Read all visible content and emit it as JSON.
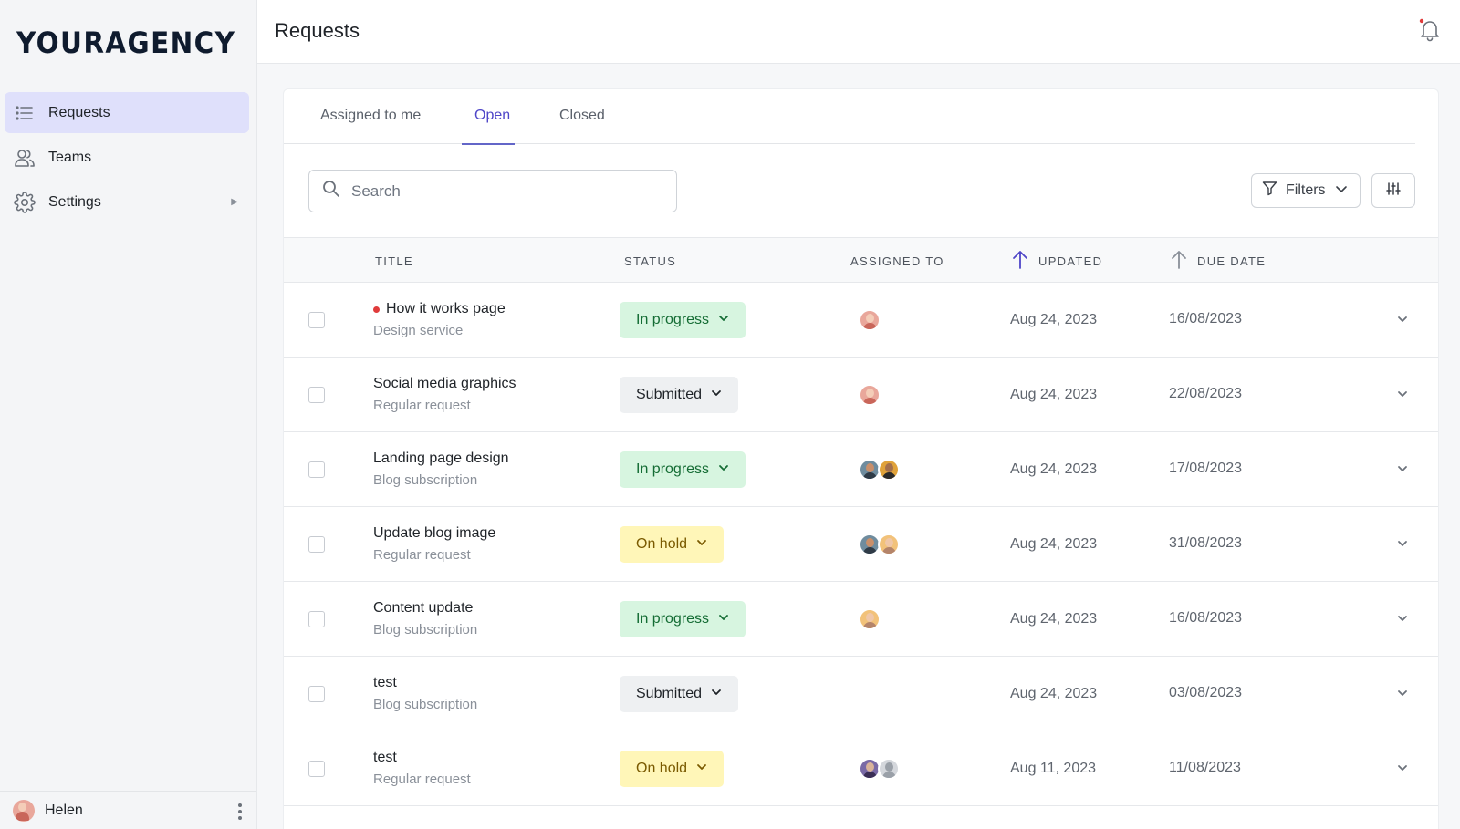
{
  "brand": {
    "logo": "YOURAGENCY"
  },
  "sidebar": {
    "items": [
      {
        "label": "Requests",
        "icon": "list-icon",
        "active": true
      },
      {
        "label": "Teams",
        "icon": "users-icon",
        "active": false
      },
      {
        "label": "Settings",
        "icon": "gear-icon",
        "active": false
      }
    ],
    "user": {
      "name": "Helen"
    }
  },
  "header": {
    "title": "Requests"
  },
  "tabs": [
    {
      "label": "Assigned to me",
      "active": false
    },
    {
      "label": "Open",
      "active": true
    },
    {
      "label": "Closed",
      "active": false
    }
  ],
  "search": {
    "placeholder": "Search",
    "value": ""
  },
  "toolbar": {
    "filters_label": "Filters"
  },
  "table": {
    "headers": {
      "title": "TITLE",
      "status": "STATUS",
      "assigned": "ASSIGNED TO",
      "updated": "UPDATED",
      "due": "DUE DATE"
    },
    "rows": [
      {
        "title": "How it works page",
        "subtitle": "Design service",
        "unread": true,
        "status": "In progress",
        "updated": "Aug 24, 2023",
        "due": "16/08/2023",
        "assignees": [
          "helen"
        ]
      },
      {
        "title": "Social media graphics",
        "subtitle": "Regular request",
        "unread": false,
        "status": "Submitted",
        "updated": "Aug 24, 2023",
        "due": "22/08/2023",
        "assignees": [
          "helen"
        ]
      },
      {
        "title": "Landing page design",
        "subtitle": "Blog subscription",
        "unread": false,
        "status": "In progress",
        "updated": "Aug 24, 2023",
        "due": "17/08/2023",
        "assignees": [
          "man1",
          "man2"
        ]
      },
      {
        "title": "Update blog image",
        "subtitle": "Regular request",
        "unread": false,
        "status": "On hold",
        "updated": "Aug 24, 2023",
        "due": "31/08/2023",
        "assignees": [
          "man1",
          "woman2"
        ]
      },
      {
        "title": "Content update",
        "subtitle": "Blog subscription",
        "unread": false,
        "status": "In progress",
        "updated": "Aug 24, 2023",
        "due": "16/08/2023",
        "assignees": [
          "woman2"
        ]
      },
      {
        "title": "test",
        "subtitle": "Blog subscription",
        "unread": false,
        "status": "Submitted",
        "updated": "Aug 24, 2023",
        "due": "03/08/2023",
        "assignees": []
      },
      {
        "title": "test",
        "subtitle": "Regular request",
        "unread": false,
        "status": "On hold",
        "updated": "Aug 11, 2023",
        "due": "11/08/2023",
        "assignees": [
          "woman3",
          "placeholder"
        ]
      }
    ]
  },
  "colors": {
    "accent": "#4f46c8",
    "status_in_progress_bg": "#d7f5e0",
    "status_submitted_bg": "#eef0f2",
    "status_on_hold_bg": "#fff6b8",
    "unread_dot": "#e03b3b"
  }
}
